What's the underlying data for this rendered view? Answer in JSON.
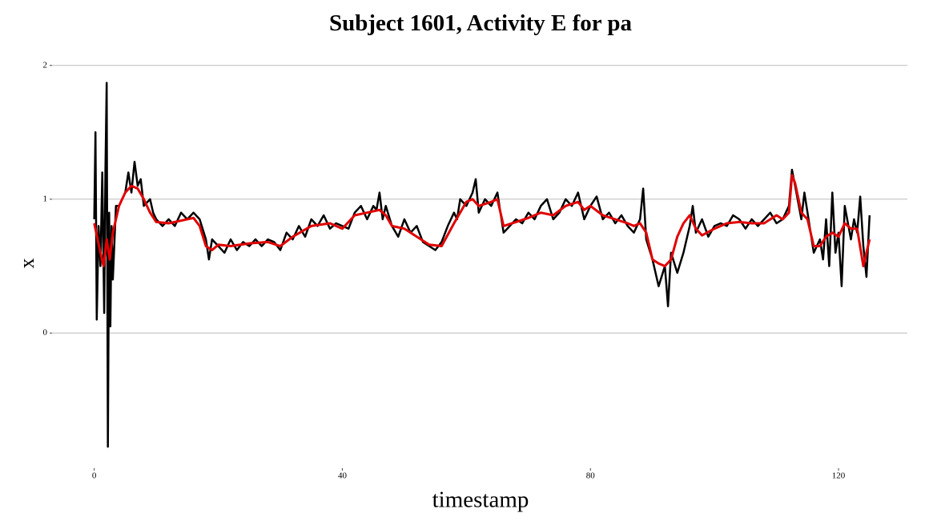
{
  "chart_data": {
    "type": "line",
    "title": "Subject 1601, Activity E for pa",
    "x_label": "timestamp",
    "y_label": "x",
    "xlim": [
      -6.8,
      131.1
    ],
    "ylim": [
      -0.95,
      2.1
    ],
    "xticks": [
      0,
      40,
      80,
      120
    ],
    "yticks": [
      0,
      1,
      2
    ],
    "grid": true,
    "series": [
      {
        "color": "#000000",
        "x": [
          0,
          0.2,
          0.4,
          0.7,
          1,
          1.3,
          1.6,
          1.8,
          2,
          2.2,
          2.4,
          2.6,
          2.8,
          3,
          3.5,
          4,
          5,
          5.5,
          6,
          6.5,
          7,
          7.5,
          8,
          9,
          9.5,
          10,
          11,
          12,
          13,
          14,
          15,
          16,
          17,
          18,
          18.5,
          19,
          20,
          21,
          22,
          23,
          24,
          25,
          26,
          27,
          28,
          29,
          30,
          31,
          32,
          33,
          34,
          35,
          36,
          37,
          38,
          39,
          40,
          41,
          42,
          43,
          44,
          45,
          45.5,
          46,
          46.5,
          47,
          48,
          49,
          50,
          51,
          52,
          53,
          54,
          55,
          56,
          57,
          58,
          58.5,
          59,
          60,
          61,
          61.5,
          62,
          63,
          64,
          65,
          65.5,
          66,
          67,
          68,
          69,
          70,
          71,
          72,
          73,
          74,
          75,
          76,
          77,
          78,
          79,
          80,
          81,
          82,
          83,
          84,
          85,
          86,
          87,
          88,
          88.5,
          89,
          90,
          91,
          92,
          92.5,
          93,
          94,
          95,
          96,
          96.5,
          97,
          98,
          99,
          100,
          101,
          102,
          103,
          104,
          105,
          106,
          107,
          108,
          109,
          110,
          111,
          112,
          112.5,
          113,
          114,
          114.5,
          115,
          116,
          117,
          117.5,
          118,
          118.5,
          119,
          119.5,
          120,
          120.5,
          121,
          122,
          122.5,
          123,
          123.5,
          124,
          124.5,
          125
        ],
        "values": [
          0.85,
          1.5,
          0.1,
          0.8,
          0.5,
          1.2,
          0.15,
          1.2,
          1.87,
          -0.85,
          0.9,
          0.05,
          0.8,
          0.4,
          0.95,
          0.95,
          1.05,
          1.2,
          1.05,
          1.28,
          1.1,
          1.15,
          0.95,
          1.0,
          0.9,
          0.85,
          0.8,
          0.85,
          0.8,
          0.9,
          0.85,
          0.9,
          0.85,
          0.7,
          0.55,
          0.7,
          0.65,
          0.6,
          0.7,
          0.62,
          0.68,
          0.65,
          0.7,
          0.65,
          0.7,
          0.68,
          0.62,
          0.75,
          0.7,
          0.8,
          0.72,
          0.85,
          0.8,
          0.88,
          0.78,
          0.82,
          0.8,
          0.78,
          0.9,
          0.95,
          0.85,
          0.95,
          0.92,
          1.05,
          0.85,
          0.95,
          0.8,
          0.72,
          0.85,
          0.75,
          0.8,
          0.68,
          0.65,
          0.62,
          0.68,
          0.8,
          0.9,
          0.85,
          1.0,
          0.95,
          1.05,
          1.15,
          0.9,
          1.0,
          0.95,
          1.05,
          0.9,
          0.75,
          0.8,
          0.85,
          0.82,
          0.9,
          0.85,
          0.95,
          1.0,
          0.85,
          0.9,
          1.0,
          0.95,
          1.05,
          0.85,
          0.95,
          1.02,
          0.85,
          0.9,
          0.82,
          0.88,
          0.8,
          0.75,
          0.85,
          1.08,
          0.7,
          0.55,
          0.35,
          0.5,
          0.2,
          0.6,
          0.45,
          0.6,
          0.8,
          0.95,
          0.75,
          0.85,
          0.72,
          0.8,
          0.82,
          0.8,
          0.88,
          0.85,
          0.78,
          0.85,
          0.8,
          0.85,
          0.9,
          0.82,
          0.85,
          0.95,
          1.22,
          1.1,
          0.85,
          1.05,
          0.9,
          0.6,
          0.7,
          0.55,
          0.85,
          0.5,
          1.05,
          0.6,
          0.75,
          0.35,
          0.95,
          0.7,
          0.85,
          0.75,
          1.02,
          0.65,
          0.42,
          0.88
        ]
      },
      {
        "color": "#e00000",
        "x": [
          0,
          1,
          1.5,
          2,
          2.5,
          3,
          4,
          5,
          6,
          7,
          8,
          9,
          10,
          12,
          14,
          16,
          17,
          18,
          19,
          20,
          22,
          25,
          28,
          30,
          32,
          35,
          38,
          40,
          42,
          44,
          46,
          47,
          48,
          50,
          52,
          54,
          56,
          58,
          60,
          61,
          62,
          64,
          65,
          66,
          68,
          70,
          72,
          74,
          76,
          78,
          79,
          80,
          82,
          84,
          86,
          87,
          88,
          89,
          90,
          91,
          92,
          93,
          94,
          95,
          96,
          97,
          98,
          100,
          102,
          104,
          106,
          108,
          110,
          111,
          112,
          112.5,
          113,
          114,
          115,
          116,
          117,
          118,
          119,
          120,
          121,
          122,
          123,
          124,
          125
        ],
        "values": [
          0.82,
          0.6,
          0.5,
          0.7,
          0.55,
          0.75,
          0.95,
          1.05,
          1.1,
          1.08,
          1.0,
          0.9,
          0.83,
          0.82,
          0.84,
          0.86,
          0.8,
          0.65,
          0.62,
          0.66,
          0.65,
          0.67,
          0.68,
          0.65,
          0.72,
          0.8,
          0.82,
          0.78,
          0.88,
          0.9,
          0.92,
          0.88,
          0.8,
          0.78,
          0.72,
          0.66,
          0.65,
          0.82,
          0.98,
          1.0,
          0.95,
          0.98,
          1.0,
          0.8,
          0.83,
          0.86,
          0.9,
          0.88,
          0.95,
          0.98,
          0.92,
          0.95,
          0.88,
          0.85,
          0.82,
          0.8,
          0.82,
          0.75,
          0.55,
          0.52,
          0.5,
          0.55,
          0.72,
          0.82,
          0.88,
          0.78,
          0.73,
          0.78,
          0.82,
          0.83,
          0.82,
          0.82,
          0.88,
          0.85,
          0.9,
          1.18,
          1.12,
          0.9,
          0.85,
          0.65,
          0.65,
          0.72,
          0.75,
          0.72,
          0.82,
          0.78,
          0.78,
          0.5,
          0.7
        ]
      }
    ]
  }
}
